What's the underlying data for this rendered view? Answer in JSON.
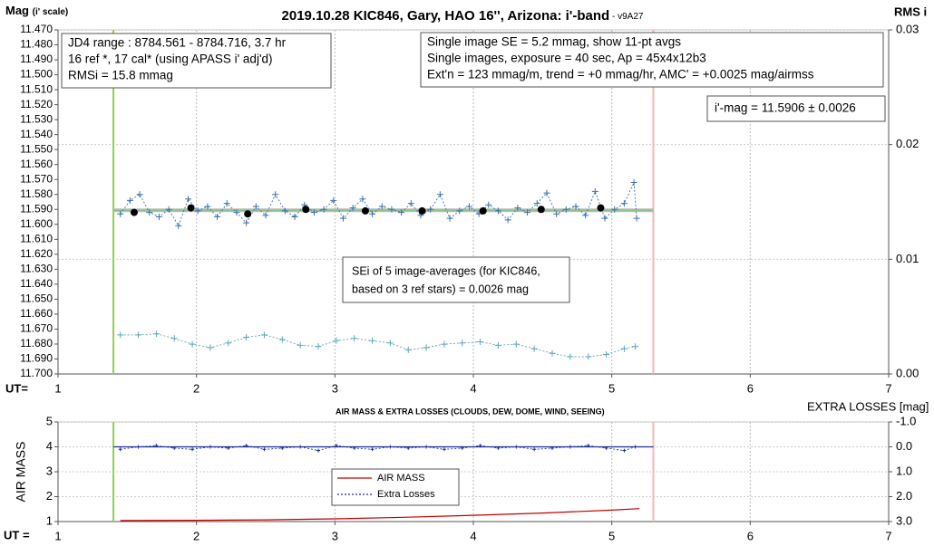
{
  "chart_data": [
    {
      "type": "scatter",
      "title": "2019.10.28 KIC846, Gary, HAO 16'', Arizona: i'-band",
      "version": " - v9A27",
      "ylabel": "Mag",
      "ylabel_note": "(i' scale)",
      "y2label": "RMS i",
      "xlabel": "UT=",
      "xlim": [
        1,
        7
      ],
      "xticks": [
        1,
        2,
        3,
        4,
        5,
        6,
        7
      ],
      "ylim": [
        11.47,
        11.7
      ],
      "y_inverted": true,
      "yticks": [
        {
          "value": 11.47,
          "label": "11.470"
        },
        {
          "value": 11.48,
          "label": "11.480"
        },
        {
          "value": 11.49,
          "label": "11.490"
        },
        {
          "value": 11.5,
          "label": "11.500"
        },
        {
          "value": 11.51,
          "label": "11.510"
        },
        {
          "value": 11.52,
          "label": "11.520"
        },
        {
          "value": 11.53,
          "label": "11.530"
        },
        {
          "value": 11.54,
          "label": "11.540"
        },
        {
          "value": 11.55,
          "label": "11.550"
        },
        {
          "value": 11.56,
          "label": "11.560"
        },
        {
          "value": 11.57,
          "label": "11.570"
        },
        {
          "value": 11.58,
          "label": "11.580"
        },
        {
          "value": 11.59,
          "label": "11.590"
        },
        {
          "value": 11.6,
          "label": "11.600"
        },
        {
          "value": 11.61,
          "label": "11.610"
        },
        {
          "value": 11.62,
          "label": "11.620"
        },
        {
          "value": 11.63,
          "label": "11.630"
        },
        {
          "value": 11.64,
          "label": "11.640"
        },
        {
          "value": 11.65,
          "label": "11.650"
        },
        {
          "value": 11.66,
          "label": "11.660"
        },
        {
          "value": 11.67,
          "label": "11.670"
        },
        {
          "value": 11.68,
          "label": "11.680"
        },
        {
          "value": 11.69,
          "label": "11.690"
        },
        {
          "value": 11.7,
          "label": "11.700"
        }
      ],
      "y2lim": [
        0,
        0.03
      ],
      "y2ticks": [
        {
          "value": 0,
          "label": "0.00"
        },
        0.01,
        0.02,
        0.03
      ],
      "grid": true,
      "grid_axis": "y2",
      "vlines": [
        {
          "value": 1.4,
          "color": "#92d050"
        },
        {
          "value": 5.3,
          "color": "#f4b8b8"
        }
      ],
      "reference_mag": 11.5906,
      "reference_color": "#8fbf8f",
      "series": [
        {
          "color": "#3d72a8",
          "marker": "plus",
          "line": "dotted",
          "x": [
            1.45,
            1.52,
            1.59,
            1.66,
            1.73,
            1.8,
            1.87,
            1.94,
            2.01,
            2.08,
            2.15,
            2.22,
            2.29,
            2.36,
            2.43,
            2.5,
            2.57,
            2.64,
            2.71,
            2.78,
            2.85,
            2.92,
            2.99,
            3.06,
            3.13,
            3.2,
            3.27,
            3.34,
            3.41,
            3.48,
            3.55,
            3.62,
            3.69,
            3.76,
            3.83,
            3.9,
            3.97,
            4.04,
            4.11,
            4.18,
            4.25,
            4.32,
            4.39,
            4.46,
            4.53,
            4.6,
            4.67,
            4.74,
            4.81,
            4.88,
            4.95,
            5.02,
            5.09,
            5.16,
            5.18
          ],
          "values": [
            11.593,
            11.584,
            11.58,
            11.592,
            11.595,
            11.59,
            11.601,
            11.583,
            11.591,
            11.588,
            11.595,
            11.586,
            11.592,
            11.599,
            11.588,
            11.594,
            11.58,
            11.591,
            11.595,
            11.587,
            11.592,
            11.59,
            11.584,
            11.596,
            11.589,
            11.583,
            11.593,
            11.588,
            11.59,
            11.592,
            11.586,
            11.594,
            11.59,
            11.58,
            11.596,
            11.591,
            11.588,
            11.593,
            11.587,
            11.591,
            11.597,
            11.589,
            11.592,
            11.586,
            11.579,
            11.593,
            11.59,
            11.588,
            11.594,
            11.578,
            11.596,
            11.59,
            11.586,
            11.572,
            11.596
          ]
        },
        {
          "color": "#000000",
          "marker": "dot",
          "line": "none",
          "x": [
            1.55,
            1.96,
            2.37,
            2.79,
            3.22,
            3.63,
            4.07,
            4.49,
            4.92
          ],
          "values": [
            11.592,
            11.589,
            11.593,
            11.59,
            11.591,
            11.591,
            11.591,
            11.59,
            11.589
          ]
        },
        {
          "color": "#5fa8b8",
          "marker": "plus",
          "line": "dotted",
          "axis": "y2",
          "x": [
            1.45,
            1.58,
            1.71,
            1.84,
            1.97,
            2.1,
            2.23,
            2.36,
            2.49,
            2.62,
            2.75,
            2.88,
            3.01,
            3.14,
            3.27,
            3.4,
            3.53,
            3.66,
            3.79,
            3.92,
            4.05,
            4.18,
            4.31,
            4.44,
            4.57,
            4.7,
            4.83,
            4.96,
            5.09,
            5.17
          ],
          "values": [
            0.0034,
            0.0034,
            0.0035,
            0.0031,
            0.0026,
            0.0023,
            0.0027,
            0.0032,
            0.0034,
            0.003,
            0.0025,
            0.0024,
            0.0029,
            0.0031,
            0.0029,
            0.0027,
            0.0021,
            0.0023,
            0.0026,
            0.0027,
            0.0028,
            0.0025,
            0.0026,
            0.0022,
            0.0018,
            0.0015,
            0.0015,
            0.0017,
            0.0022,
            0.0024
          ]
        }
      ],
      "text_boxes": [
        [
          "JD4 range : 8784.561 - 8784.716, 3.7  hr",
          "16 ref *, 17 cal* (using APASS i' adj'd)",
          "RMSi = 15.8 mmag"
        ],
        [
          "Single image SE = 5.2 mmag, show 11-pt avgs",
          "Single images, exposure = 40 sec, Ap = 45x4x12b3",
          "Ext'n = 123 mmag/m, trend = +0 mmag/hr, AMC' = +0.0025 mag/airmss"
        ],
        [
          "i'-mag = 11.5906 ± 0.0026"
        ],
        [
          "SEi of 5 image-averages (for KIC846,",
          "based on 3 ref stars) = 0.0026 mag"
        ]
      ]
    },
    {
      "type": "line",
      "title": "AIR MASS & EXTRA LOSSES (CLOUDS, DEW, DOME, WIND, SEEING)",
      "ylabel": "AIR MASS",
      "y2label": "EXTRA LOSSES [mag]",
      "xlabel": "UT =",
      "xlim": [
        1,
        7
      ],
      "xticks": [
        1,
        2,
        3,
        4,
        5,
        6,
        7
      ],
      "ylim": [
        1,
        5
      ],
      "yticks": [
        1,
        2,
        3,
        4,
        5
      ],
      "y2lim": [
        -1,
        3
      ],
      "y2_inverted": true,
      "y2ticks": [
        {
          "value": -1,
          "label": "-1.0"
        },
        {
          "value": 0,
          "label": "0.0"
        },
        {
          "value": 1,
          "label": "1.0"
        },
        {
          "value": 2,
          "label": "2.0"
        },
        {
          "value": 3,
          "label": "3.0"
        }
      ],
      "grid": true,
      "grid_axis": "y",
      "vlines": [
        {
          "value": 1.4,
          "color": "#92d050"
        },
        {
          "value": 5.3,
          "color": "#f4b8b8"
        }
      ],
      "reference_y2": 0,
      "reference_color": "#1f2f8f",
      "series": [
        {
          "name": "AIR MASS",
          "color": "#c00000",
          "marker": "none",
          "line": "solid",
          "x": [
            1.45,
            2.0,
            2.5,
            3.0,
            3.5,
            4.0,
            4.5,
            5.0,
            5.2
          ],
          "values": [
            1.04,
            1.05,
            1.07,
            1.11,
            1.17,
            1.25,
            1.34,
            1.46,
            1.52
          ]
        },
        {
          "name": "Extra Losses",
          "color": "#1f2f9f",
          "marker": "plus",
          "line": "dotted",
          "axis": "y2",
          "x": [
            1.45,
            1.58,
            1.71,
            1.84,
            1.97,
            2.1,
            2.23,
            2.36,
            2.49,
            2.62,
            2.75,
            2.88,
            3.01,
            3.14,
            3.27,
            3.4,
            3.53,
            3.66,
            3.79,
            3.92,
            4.05,
            4.18,
            4.31,
            4.44,
            4.57,
            4.7,
            4.83,
            4.96,
            5.09,
            5.17
          ],
          "values": [
            0.1,
            0.0,
            -0.05,
            0.05,
            0.1,
            0.0,
            0.05,
            -0.05,
            0.1,
            0.05,
            0.0,
            0.15,
            -0.05,
            0.05,
            0.1,
            0.0,
            0.05,
            0.0,
            0.1,
            0.05,
            -0.05,
            0.05,
            0.0,
            0.1,
            0.05,
            0.0,
            -0.05,
            0.05,
            0.15,
            0.0
          ]
        }
      ]
    }
  ]
}
